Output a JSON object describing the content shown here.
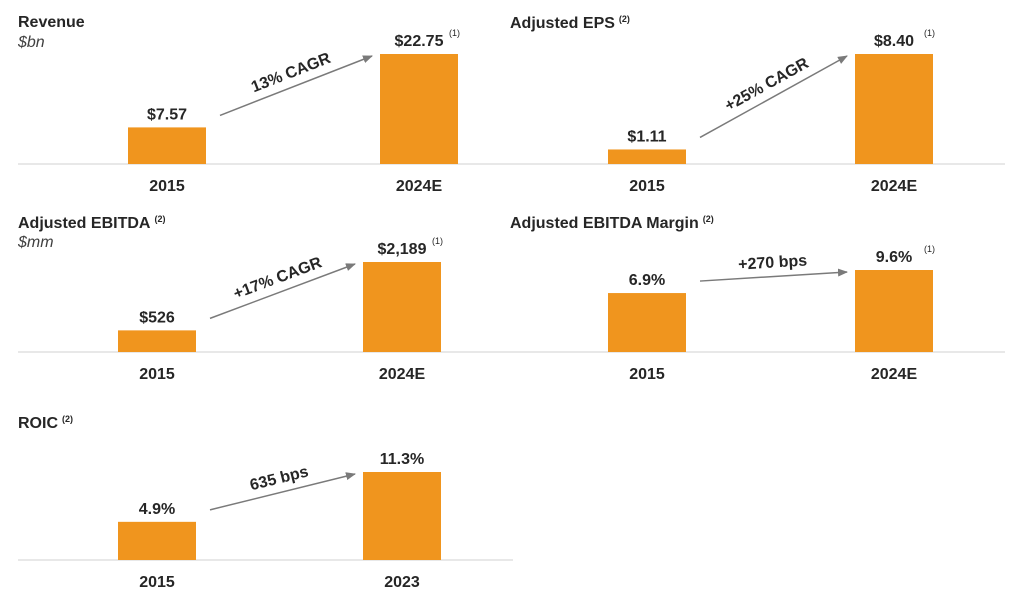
{
  "colors": {
    "bar": "#f0951e",
    "axis": "#d0d0d0",
    "arrow": "#7a7a7a",
    "text": "#262626"
  },
  "chart_data": [
    {
      "type": "bar",
      "title": "Revenue",
      "title_note": "",
      "unit": "$bn",
      "categories": [
        "2015",
        "2024E"
      ],
      "values": [
        7.57,
        22.75
      ],
      "value_labels": [
        "$7.57",
        "$22.75"
      ],
      "value_notes": [
        "",
        "(1)"
      ],
      "annotation": "13% CAGR"
    },
    {
      "type": "bar",
      "title": "Adjusted EPS",
      "title_note": "(2)",
      "unit": "",
      "categories": [
        "2015",
        "2024E"
      ],
      "values": [
        1.11,
        8.4
      ],
      "value_labels": [
        "$1.11",
        "$8.40"
      ],
      "value_notes": [
        "",
        "(1)"
      ],
      "annotation": "+25% CAGR"
    },
    {
      "type": "bar",
      "title": "Adjusted EBITDA",
      "title_note": "(2)",
      "unit": "$mm",
      "categories": [
        "2015",
        "2024E"
      ],
      "values": [
        526,
        2189
      ],
      "value_labels": [
        "$526",
        "$2,189"
      ],
      "value_notes": [
        "",
        "(1)"
      ],
      "annotation": "+17% CAGR"
    },
    {
      "type": "bar",
      "title": "Adjusted EBITDA Margin",
      "title_note": "(2)",
      "unit": "",
      "categories": [
        "2015",
        "2024E"
      ],
      "values": [
        6.9,
        9.6
      ],
      "value_labels": [
        "6.9%",
        "9.6%"
      ],
      "value_notes": [
        "",
        "(1)"
      ],
      "annotation": "+270 bps"
    },
    {
      "type": "bar",
      "title": "ROIC",
      "title_note": "(2)",
      "unit": "",
      "categories": [
        "2015",
        "2023"
      ],
      "values": [
        4.9,
        11.3
      ],
      "value_labels": [
        "4.9%",
        "11.3%"
      ],
      "value_notes": [
        "",
        ""
      ],
      "annotation": "635 bps"
    }
  ]
}
